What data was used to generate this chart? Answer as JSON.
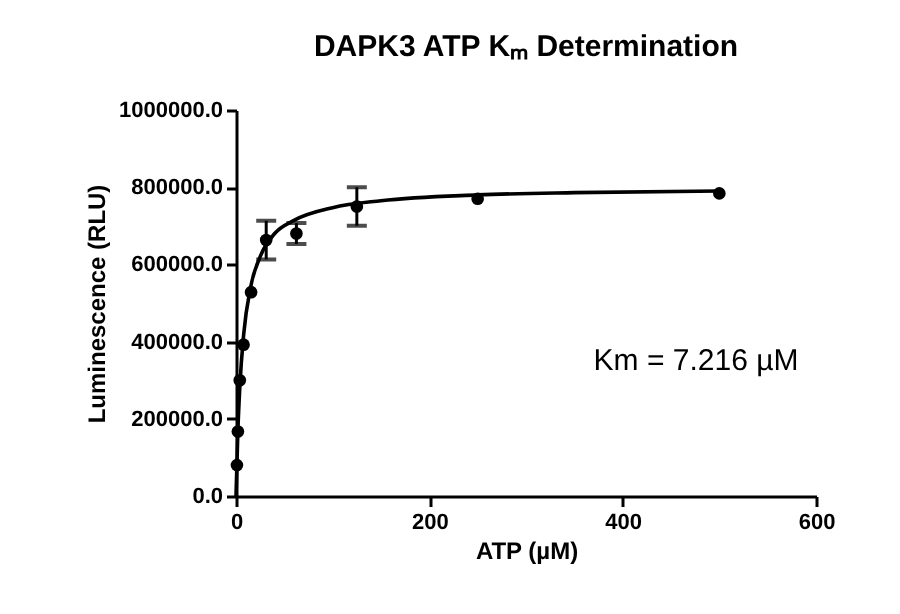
{
  "chart_data": {
    "type": "scatter",
    "title": "DAPK3 ATP Kₘ Determination",
    "xlabel": "ATP (µM)",
    "ylabel": "Luminescence (RLU)",
    "annotations": [
      "Km = 7.216 µM"
    ],
    "series": [
      {
        "color": "#000000",
        "marker": "circle",
        "x": [
          0.98,
          1.95,
          3.9,
          7.8,
          15.6,
          31.25,
          62.5,
          125,
          250,
          500
        ],
        "values": [
          80000,
          167000,
          300000,
          392000,
          528000,
          663000,
          680000,
          750000,
          770000,
          784000
        ],
        "errors": [
          null,
          null,
          null,
          null,
          null,
          50000,
          27000,
          50000,
          null,
          null
        ]
      },
      {
        "type": "line",
        "color": "#000000",
        "line_style": "solid",
        "x": [
          0,
          2,
          4,
          8,
          15,
          25,
          40,
          60,
          100,
          150,
          250,
          350,
          500
        ],
        "values": [
          0,
          173000,
          285000,
          420000,
          540000,
          620000,
          680000,
          714000,
          747000,
          765000,
          780000,
          786000,
          790000
        ]
      }
    ],
    "xlim": [
      0,
      600
    ],
    "xticks": [
      0,
      200,
      400,
      600
    ],
    "ylim": [
      0,
      1000000
    ],
    "yticks": [
      {
        "value": 0,
        "label": "0.0"
      },
      {
        "value": 200000,
        "label": "200000.0"
      },
      {
        "value": 400000,
        "label": "400000.0"
      },
      {
        "value": 600000,
        "label": "600000.0"
      },
      {
        "value": 800000,
        "label": "800000.0"
      },
      {
        "value": 1000000,
        "label": "1000000.0"
      }
    ],
    "grid": false
  }
}
